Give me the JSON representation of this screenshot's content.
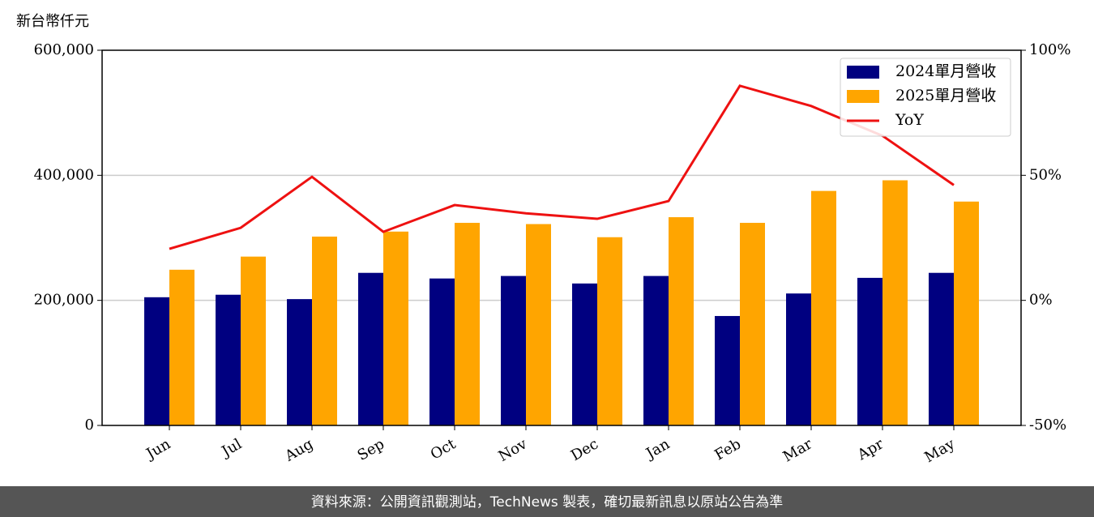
{
  "chart_data": {
    "type": "bar_line",
    "y_label": "新台幣仟元",
    "categories": [
      "Jun",
      "Jul",
      "Aug",
      "Sep",
      "Oct",
      "Nov",
      "Dec",
      "Jan",
      "Feb",
      "Mar",
      "Apr",
      "May"
    ],
    "series": [
      {
        "name": "2024單月營收",
        "color": "#000080",
        "type": "bar",
        "values": [
          205000,
          209000,
          202000,
          244000,
          235000,
          239000,
          227000,
          239000,
          175000,
          211000,
          236000,
          244000
        ]
      },
      {
        "name": "2025單月營收",
        "color": "#ffa500",
        "type": "bar",
        "values": [
          249000,
          270000,
          302000,
          310000,
          324000,
          322000,
          301000,
          333000,
          324000,
          375000,
          392000,
          358000
        ]
      },
      {
        "name": "YoY",
        "color": "#ee1111",
        "type": "line",
        "axis": "y2",
        "values": [
          20.6,
          29.0,
          49.4,
          27.4,
          38.1,
          34.8,
          32.6,
          39.7,
          85.8,
          77.7,
          65.8,
          46.1
        ]
      }
    ],
    "ylim": [
      0,
      600000
    ],
    "yticks": [
      0,
      {
        "value": 200000,
        "label": "200,000"
      },
      {
        "value": 400000,
        "label": "400,000"
      },
      {
        "value": 600000,
        "label": "600,000"
      }
    ],
    "y2lim": [
      -50,
      100
    ],
    "y2ticks": [
      {
        "value": -50,
        "label": "-50%"
      },
      {
        "value": 0,
        "label": "0%"
      },
      {
        "value": 50,
        "label": "50%"
      },
      {
        "value": 100,
        "label": "100%"
      }
    ],
    "grid": true,
    "legend": "upper right",
    "source": "資料來源：公開資訊觀測站，TechNews 製表，確切最新訊息以原站公告為準"
  }
}
